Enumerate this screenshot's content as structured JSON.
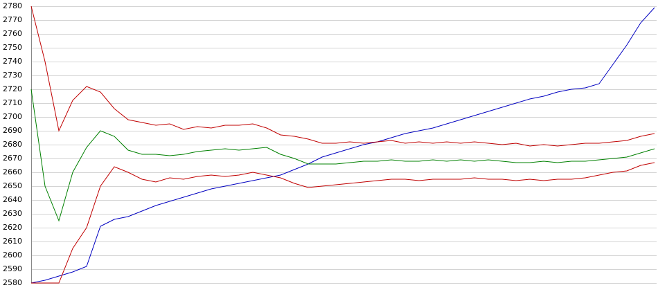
{
  "chart_data": {
    "type": "line",
    "ylim": [
      2580,
      2780
    ],
    "yticks": [
      2580,
      2590,
      2600,
      2610,
      2620,
      2630,
      2640,
      2650,
      2660,
      2670,
      2680,
      2690,
      2700,
      2710,
      2720,
      2730,
      2740,
      2750,
      2760,
      2770,
      2780
    ],
    "grid": true,
    "series": [
      {
        "color": "#0000c0",
        "values": [
          2580,
          2582,
          2585,
          2588,
          2592,
          2621,
          2626,
          2628,
          2632,
          2636,
          2639,
          2642,
          2645,
          2648,
          2650,
          2652,
          2654,
          2656,
          2658,
          2662,
          2666,
          2671,
          2674,
          2677,
          2680,
          2682,
          2685,
          2688,
          2690,
          2692,
          2695,
          2698,
          2701,
          2704,
          2707,
          2710,
          2713,
          2715,
          2718,
          2720,
          2721,
          2724,
          2738,
          2752,
          2768,
          2779
        ]
      },
      {
        "color": "#c00000",
        "values": [
          2780,
          2740,
          2690,
          2712,
          2722,
          2718,
          2706,
          2698,
          2696,
          2694,
          2695,
          2691,
          2693,
          2692,
          2694,
          2694,
          2695,
          2692,
          2687,
          2686,
          2684,
          2681,
          2681,
          2682,
          2681,
          2682,
          2683,
          2681,
          2682,
          2681,
          2682,
          2681,
          2682,
          2681,
          2680,
          2681,
          2679,
          2680,
          2679,
          2680,
          2681,
          2681,
          2682,
          2683,
          2686,
          2688
        ]
      },
      {
        "color": "#008000",
        "values": [
          2720,
          2650,
          2625,
          2660,
          2678,
          2690,
          2686,
          2676,
          2673,
          2673,
          2672,
          2673,
          2675,
          2676,
          2677,
          2676,
          2677,
          2678,
          2673,
          2670,
          2666,
          2666,
          2666,
          2667,
          2668,
          2668,
          2669,
          2668,
          2668,
          2669,
          2668,
          2669,
          2668,
          2669,
          2668,
          2667,
          2667,
          2668,
          2667,
          2668,
          2668,
          2669,
          2670,
          2671,
          2674,
          2677
        ]
      },
      {
        "color": "#c00000",
        "values": [
          2580,
          2580,
          2580,
          2605,
          2620,
          2650,
          2664,
          2660,
          2655,
          2653,
          2656,
          2655,
          2657,
          2658,
          2657,
          2658,
          2660,
          2658,
          2656,
          2652,
          2649,
          2650,
          2651,
          2652,
          2653,
          2654,
          2655,
          2655,
          2654,
          2655,
          2655,
          2655,
          2656,
          2655,
          2655,
          2654,
          2655,
          2654,
          2655,
          2655,
          2656,
          2658,
          2660,
          2661,
          2665,
          2667
        ]
      }
    ]
  }
}
